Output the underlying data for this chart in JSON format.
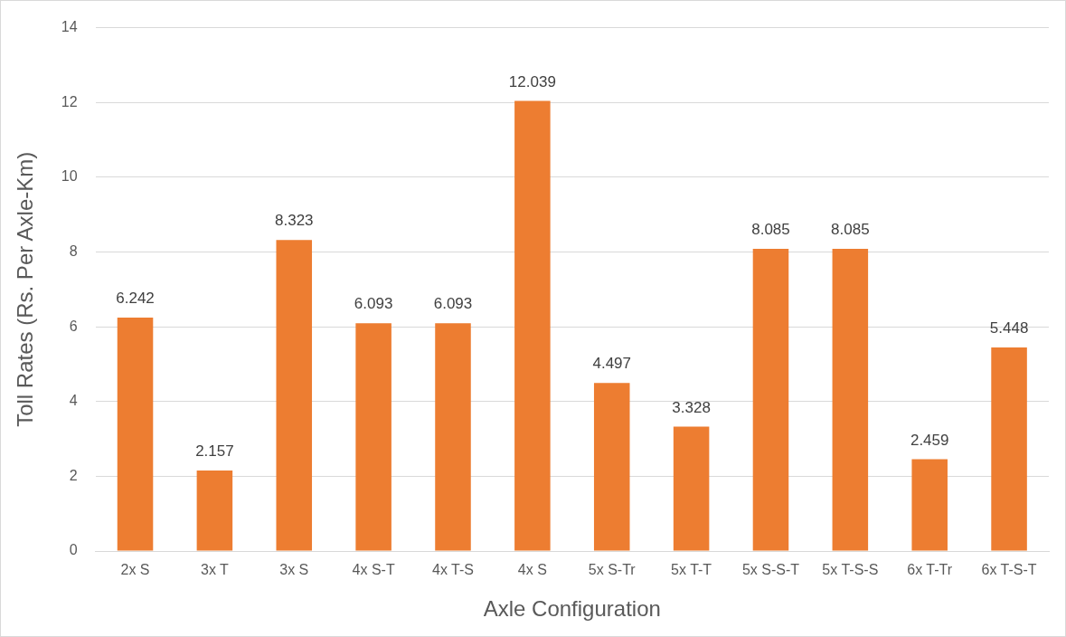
{
  "chart_data": {
    "type": "bar",
    "xlabel": "Axle Configuration",
    "ylabel": "Toll Rates (Rs. Per Axle-Km)",
    "categories": [
      "2x S",
      "3x T",
      "3x S",
      "4x S-T",
      "4x T-S",
      "4x S",
      "5x S-Tr",
      "5x T-T",
      "5x S-S-T",
      "5x T-S-S",
      "6x T-Tr",
      "6x T-S-T"
    ],
    "values": [
      6.242,
      2.157,
      8.323,
      6.093,
      6.093,
      12.039,
      4.497,
      3.328,
      8.085,
      8.085,
      2.459,
      5.448
    ],
    "color": "#ed7d31",
    "ylim": [
      0,
      14
    ],
    "yticks": [
      0,
      2,
      4,
      6,
      8,
      10,
      12,
      14
    ],
    "grid": "y",
    "data_labels": true,
    "legend": false
  }
}
